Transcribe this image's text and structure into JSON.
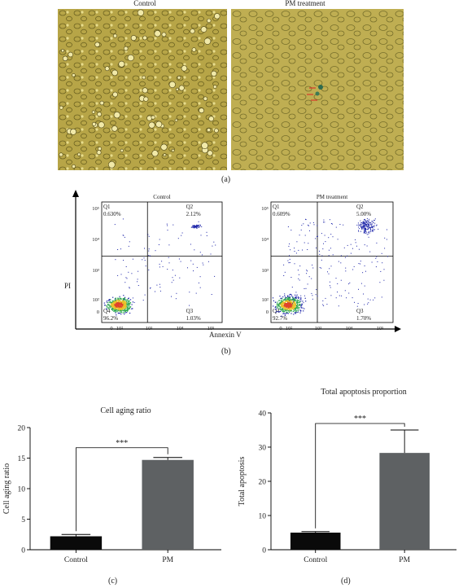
{
  "panel_a": {
    "left_title": "Control",
    "right_title": "PM treatment",
    "tag": "(a)"
  },
  "panel_b": {
    "tag": "(b)",
    "y_axis_label": "PI",
    "x_axis_label": "Annexin V",
    "plots": [
      {
        "title": "Control",
        "q1": {
          "label": "Q1",
          "pct": "0.630%"
        },
        "q2": {
          "label": "Q2",
          "pct": "2.12%"
        },
        "q3": {
          "label": "Q3",
          "pct": "1.03%"
        },
        "q4": {
          "label": "Q4",
          "pct": "96.2%"
        }
      },
      {
        "title": "PM treatment",
        "q1": {
          "label": "Q1",
          "pct": "0.609%"
        },
        "q2": {
          "label": "Q2",
          "pct": "5.00%"
        },
        "q3": {
          "label": "Q3",
          "pct": "1.70%"
        },
        "q4": {
          "label": "Q4",
          "pct": "92.7%"
        }
      }
    ],
    "y_ticks": [
      "10⁵",
      "10⁴",
      "10³",
      "10²",
      "0"
    ],
    "x_ticks": [
      "0",
      "10²",
      "10³",
      "10⁴",
      "10⁵"
    ]
  },
  "chart_data": [
    {
      "type": "bar",
      "title": "Cell aging ratio",
      "categories": [
        "Control",
        "PM"
      ],
      "values": [
        2.2,
        14.7
      ],
      "errors": [
        0.3,
        0.4
      ],
      "ylabel": "Cell aging ratio",
      "ylim": [
        0,
        20
      ],
      "yticks": [
        0,
        5,
        10,
        15,
        20
      ],
      "significance": "***",
      "tag": "(c)"
    },
    {
      "type": "bar",
      "title": "Total apoptosis proportion",
      "categories": [
        "Control",
        "PM"
      ],
      "values": [
        5.0,
        28.3
      ],
      "errors": [
        0.3,
        6.7
      ],
      "ylabel": "Total apoptosis",
      "ylim": [
        0,
        40
      ],
      "yticks": [
        0,
        10,
        20,
        30,
        40
      ],
      "significance": "***",
      "tag": "(d)"
    }
  ],
  "colors": {
    "micro_bg": "#b7a547",
    "control_bar": "#0a0a0a",
    "pm_bar": "#5e6163",
    "flow_dots": "#1a22a8",
    "flow_hot": "#e0442a"
  }
}
